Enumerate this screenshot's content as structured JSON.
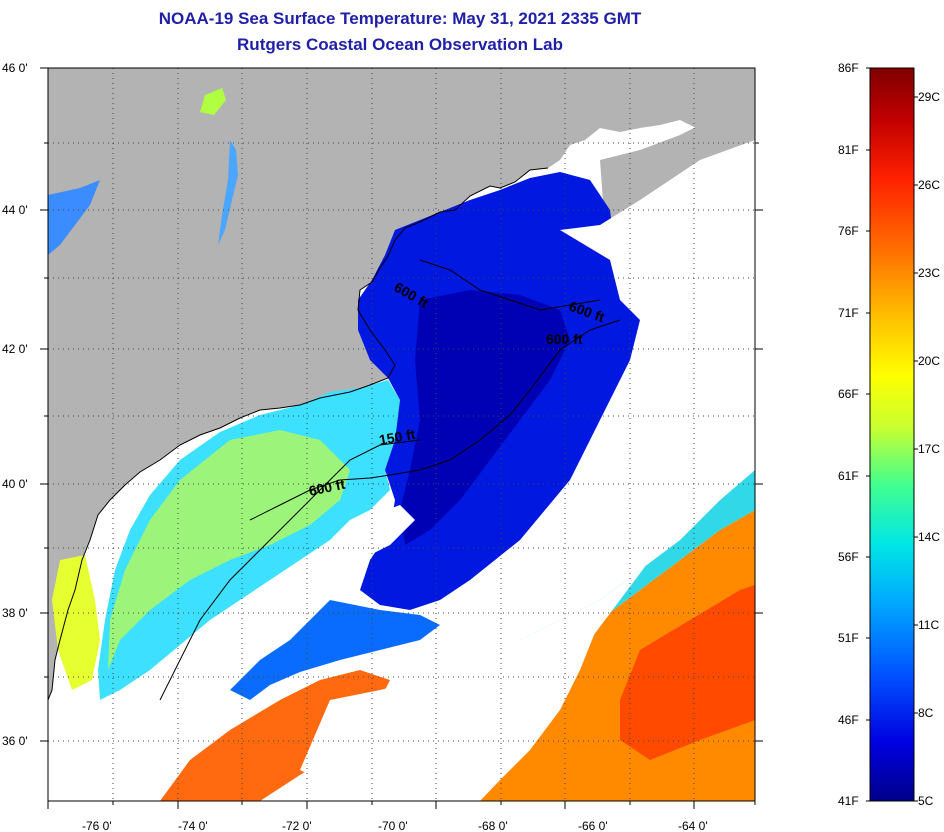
{
  "title": {
    "line1": "NOAA-19 Sea Surface Temperature:  May 31, 2021 2335 GMT",
    "line2": "Rutgers Coastal Ocean Observation Lab"
  },
  "map": {
    "lat_labels": [
      "46 0'",
      "44 0'",
      "42 0'",
      "40 0'",
      "38 0'",
      "36 0'"
    ],
    "lon_labels": [
      "-76 0'",
      "-74 0'",
      "-72 0'",
      "-70 0'",
      "-68 0'",
      "-66 0'",
      "-64 0'"
    ],
    "contour_labels": [
      "600 ft",
      "600 ft",
      "600 ft",
      "150 ft",
      "600 ft"
    ],
    "colors": {
      "land": "#b3b3b3",
      "cloud": "#ffffff",
      "border": "#000000"
    }
  },
  "colorbar": {
    "f_labels": [
      "86F",
      "81F",
      "76F",
      "71F",
      "66F",
      "61F",
      "56F",
      "51F",
      "46F",
      "41F"
    ],
    "c_labels": [
      "29C",
      "26C",
      "23C",
      "20C",
      "17C",
      "14C",
      "11C",
      "8C",
      "5C"
    ],
    "range_f": [
      41,
      86
    ],
    "range_c": [
      5,
      30
    ],
    "scale": [
      "#00008a",
      "#0000e0",
      "#0050ff",
      "#00a8ff",
      "#00e6e6",
      "#40ff90",
      "#c8ff30",
      "#ffff00",
      "#ffc000",
      "#ff7000",
      "#ff2000",
      "#c00000",
      "#800000"
    ]
  }
}
